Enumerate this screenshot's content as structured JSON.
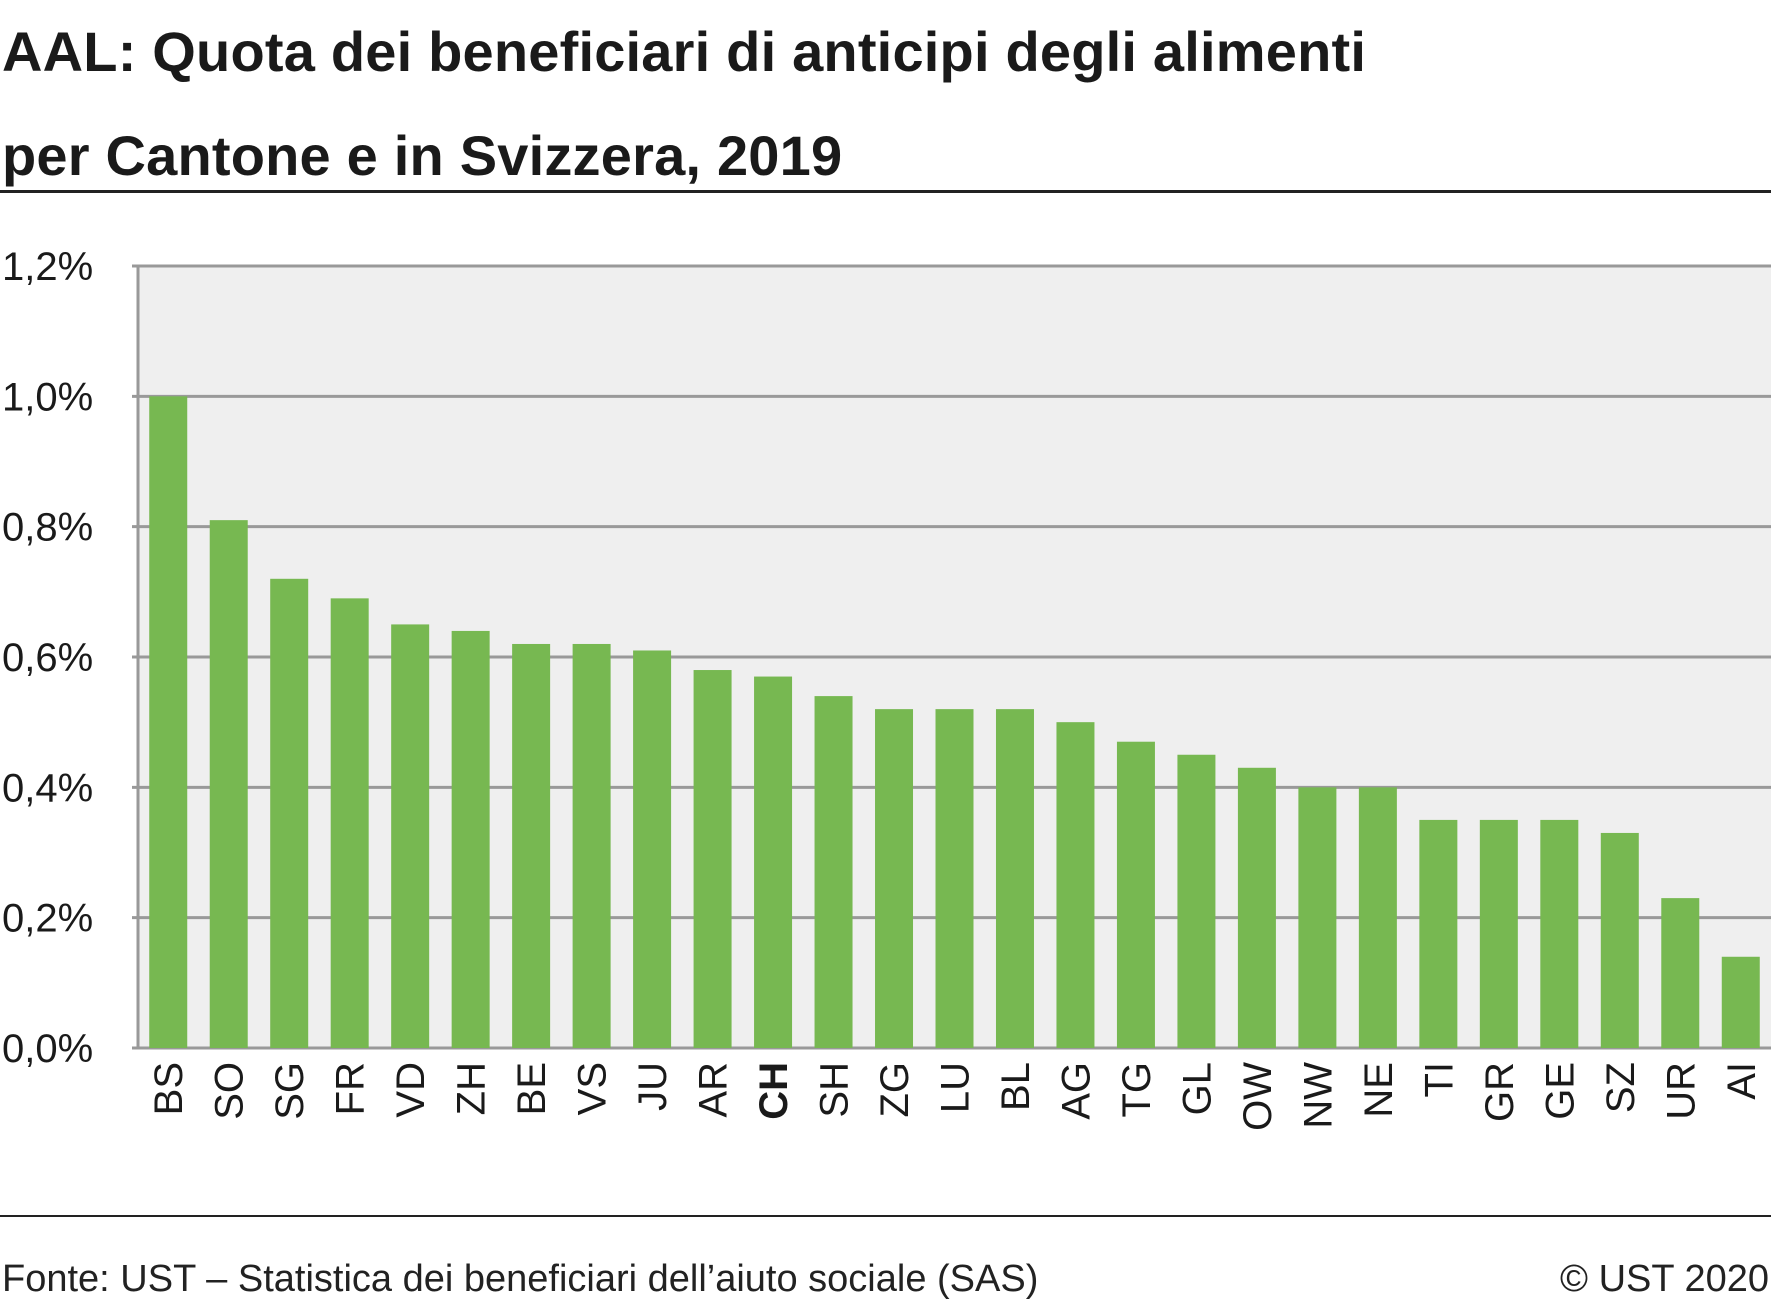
{
  "title_line1": "AAL: Quota dei beneficiari di anticipi degli alimenti",
  "title_line2": "per Cantone e in Svizzera, 2019",
  "footer": {
    "source": "Fonte: UST – Statistica dei beneficiari dell’aiuto sociale (SAS)",
    "copyright": "© UST 2020"
  },
  "colors": {
    "bar": "#77b851",
    "plot_background": "#efefef",
    "grid": "#999999"
  },
  "chart_data": {
    "type": "bar",
    "categories": [
      "BS",
      "SO",
      "SG",
      "FR",
      "VD",
      "ZH",
      "BE",
      "VS",
      "JU",
      "AR",
      "CH",
      "SH",
      "ZG",
      "LU",
      "BL",
      "AG",
      "TG",
      "GL",
      "OW",
      "NW",
      "NE",
      "TI",
      "GR",
      "GE",
      "SZ",
      "UR",
      "AI"
    ],
    "emphasized_category": "CH",
    "values": [
      1.0,
      0.81,
      0.72,
      0.69,
      0.65,
      0.64,
      0.62,
      0.62,
      0.61,
      0.58,
      0.57,
      0.54,
      0.52,
      0.52,
      0.52,
      0.5,
      0.47,
      0.45,
      0.43,
      0.4,
      0.4,
      0.35,
      0.35,
      0.35,
      0.33,
      0.23,
      0.14
    ],
    "unit": "%",
    "ylim": [
      0,
      1.2
    ],
    "yticks": [
      0,
      0.2,
      0.4,
      0.6,
      0.8,
      1.0,
      1.2
    ],
    "ytick_labels": [
      "0,0%",
      "0,2%",
      "0,4%",
      "0,6%",
      "0,8%",
      "1,0%",
      "1,2%"
    ],
    "grid": true,
    "legend": "none",
    "title": "AAL: Quota dei beneficiari di anticipi degli alimenti per Cantone e in Svizzera, 2019",
    "xlabel": "",
    "ylabel": ""
  }
}
